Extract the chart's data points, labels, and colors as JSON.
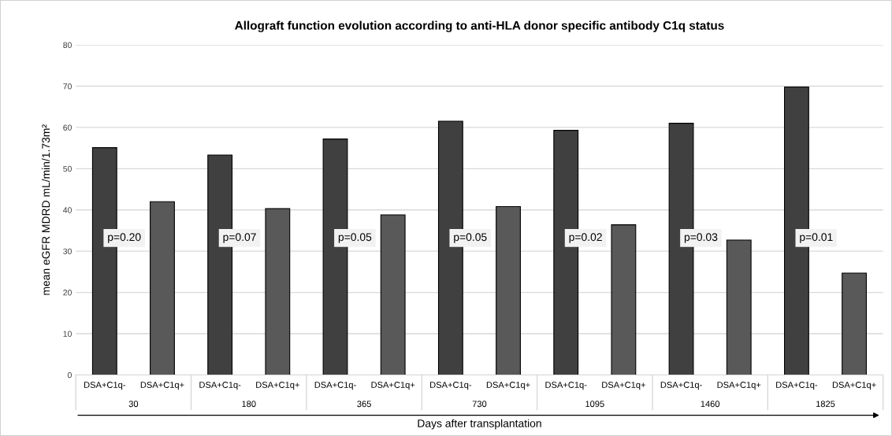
{
  "chart_data": {
    "type": "bar",
    "title": "Allograft function evolution according to anti-HLA donor specific antibody C1q status",
    "xlabel": "Days after transplantation",
    "ylabel": "mean eGFR MDRD mL/min/1.73m²",
    "categories": [
      "30",
      "180",
      "365",
      "730",
      "1095",
      "1460",
      "1825"
    ],
    "series": [
      {
        "name": "DSA+C1q-",
        "color": "#404040",
        "values": [
          55.1,
          53.3,
          57.2,
          61.5,
          59.3,
          61.0,
          69.8
        ]
      },
      {
        "name": "DSA+C1q+",
        "color": "#595959",
        "values": [
          42.0,
          40.3,
          38.8,
          40.8,
          36.4,
          32.7,
          24.7
        ]
      }
    ],
    "annotations": [
      "p=0.20",
      "p=0.07",
      "p=0.05",
      "p=0.05",
      "p=0.02",
      "p=0.03",
      "p=0.01"
    ],
    "ylim": [
      0,
      80
    ],
    "yticks": [
      0,
      10,
      20,
      30,
      40,
      50,
      60,
      70,
      80
    ],
    "grid": "y",
    "legend": false
  }
}
